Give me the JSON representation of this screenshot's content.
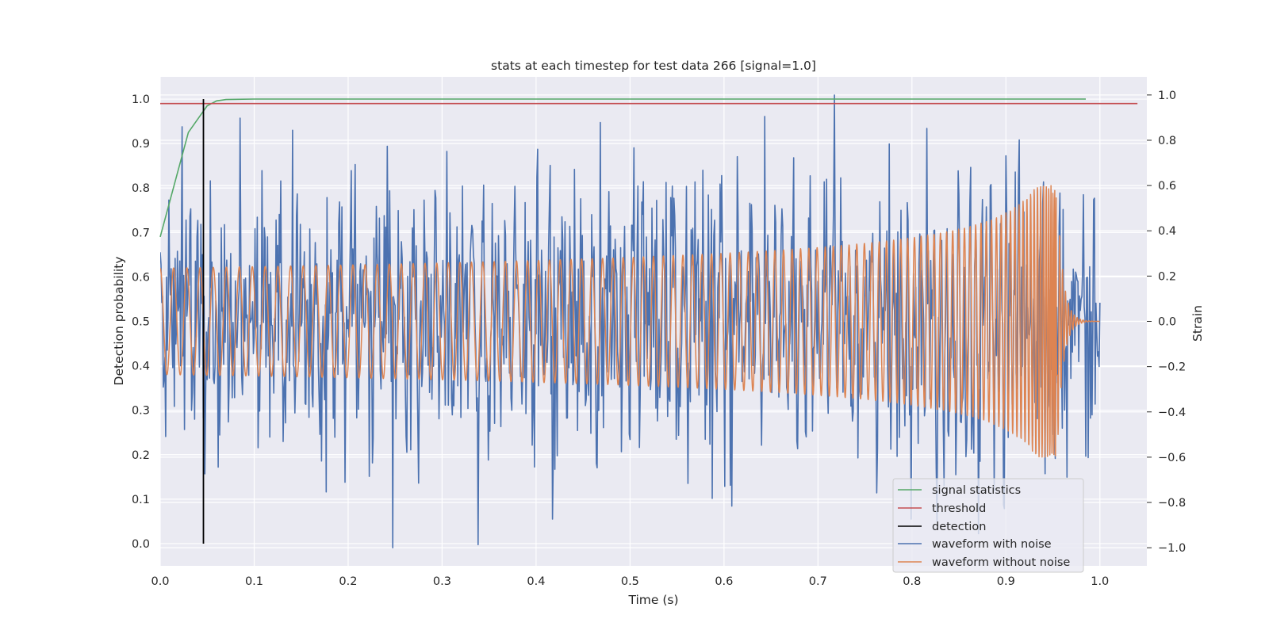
{
  "chart_data": {
    "type": "line",
    "title": "stats at each timestep for test data 266 [signal=1.0]",
    "xlabel": "Time (s)",
    "ylabel_left": "Detection probability",
    "ylabel_right": "Strain",
    "xlim": [
      0.0,
      1.05
    ],
    "ylim_left": [
      -0.05,
      1.05
    ],
    "ylim_right": [
      -1.08,
      1.08
    ],
    "x_ticks": [
      "0.0",
      "0.1",
      "0.2",
      "0.3",
      "0.4",
      "0.5",
      "0.6",
      "0.7",
      "0.8",
      "0.9",
      "1.0"
    ],
    "y_ticks_left": [
      "0.0",
      "0.1",
      "0.2",
      "0.3",
      "0.4",
      "0.5",
      "0.6",
      "0.7",
      "0.8",
      "0.9",
      "1.0"
    ],
    "y_ticks_right": [
      "−1.0",
      "−0.8",
      "−0.6",
      "−0.4",
      "−0.2",
      "0.0",
      "0.2",
      "0.4",
      "0.6",
      "0.8",
      "1.0"
    ],
    "grid": true,
    "legend_position": "lower-right",
    "colors": {
      "signal_statistics": "#55a868",
      "threshold": "#c44e52",
      "detection": "#000000",
      "waveform_with_noise": "#4c72b0",
      "waveform_without_noise": "#dd8452",
      "background": "#eaeaf2",
      "grid": "#ffffff"
    },
    "series": [
      {
        "name": "signal statistics",
        "axis": "left",
        "x": [
          0.0,
          0.03,
          0.05,
          0.06,
          0.07,
          0.1,
          0.3,
          0.5,
          0.7,
          0.9,
          0.985
        ],
        "y": [
          0.69,
          0.925,
          0.985,
          0.996,
          0.999,
          1.0,
          1.0,
          1.0,
          1.0,
          1.0,
          1.0
        ]
      },
      {
        "name": "threshold",
        "axis": "left",
        "x": [
          0.0,
          1.04
        ],
        "y": [
          0.99,
          0.99
        ]
      },
      {
        "name": "detection",
        "axis": "left",
        "x": [
          0.046,
          0.046
        ],
        "y": [
          0.0,
          1.0
        ]
      },
      {
        "name": "waveform with noise",
        "axis": "right",
        "description": "noisy strain, ~1200 samples, amplitude up to ±1.0",
        "x_range": [
          0.0,
          1.0
        ],
        "approx_amplitude": 0.55
      },
      {
        "name": "waveform without noise",
        "axis": "right",
        "description": "chirp signal, amplitude ~0.23 growing to ~0.6 near merger at t≈0.955, ringdown to 0 by 1.0",
        "x_range": [
          0.0,
          1.0
        ],
        "merger_time": 0.955
      }
    ]
  }
}
